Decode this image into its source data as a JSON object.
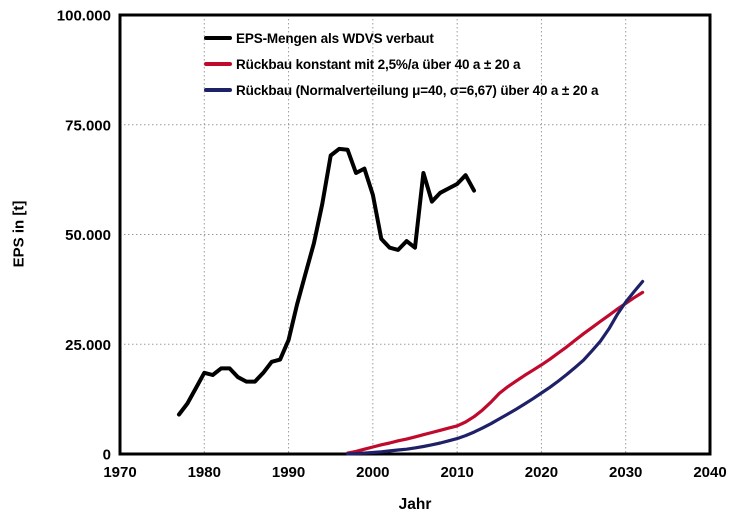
{
  "figure": {
    "background": "#ffffff",
    "axis_color": "#000000",
    "grid_color": "#9b9b9b"
  },
  "chart_data": {
    "type": "line",
    "title": "",
    "xlabel": "Jahr",
    "ylabel": "EPS in [t]",
    "xlim": [
      1970,
      2040
    ],
    "ylim": [
      0,
      100000
    ],
    "x_ticks": [
      1970,
      1980,
      1990,
      2000,
      2010,
      2020,
      2030,
      2040
    ],
    "y_ticks": [
      0,
      25000,
      50000,
      75000,
      100000
    ],
    "y_tick_labels": [
      "0",
      "25.000",
      "50.000",
      "75.000",
      "100.000"
    ],
    "grid": {
      "show": true,
      "style": "dotted",
      "color": "#9b9b9b"
    },
    "legend_position": "top-center-inside",
    "series": [
      {
        "name": "EPS-Mengen als WDVS verbaut",
        "color": "#000000",
        "width": 4,
        "x": [
          1977,
          1978,
          1979,
          1980,
          1981,
          1982,
          1983,
          1984,
          1985,
          1986,
          1987,
          1988,
          1989,
          1990,
          1991,
          1992,
          1993,
          1994,
          1995,
          1996,
          1997,
          1998,
          1999,
          2000,
          2001,
          2002,
          2003,
          2004,
          2005,
          2006,
          2007,
          2008,
          2009,
          2010,
          2011,
          2012
        ],
        "y": [
          9000,
          11500,
          15000,
          18500,
          18000,
          19500,
          19500,
          17500,
          16500,
          16500,
          18500,
          21000,
          21500,
          26000,
          34000,
          41000,
          48000,
          57000,
          68000,
          69500,
          69300,
          64000,
          65000,
          59000,
          49000,
          47000,
          46500,
          48500,
          47000,
          64000,
          57500,
          59500,
          60500,
          61500,
          63500,
          60000
        ]
      },
      {
        "name": "Rückbau konstant mit 2,5%/a über 40 a ± 20 a",
        "color": "#c00a2d",
        "width": 3.2,
        "x": [
          1997,
          1998,
          1999,
          2000,
          2001,
          2002,
          2003,
          2004,
          2005,
          2006,
          2007,
          2008,
          2009,
          2010,
          2011,
          2012,
          2013,
          2014,
          2015,
          2016,
          2017,
          2018,
          2019,
          2020,
          2021,
          2022,
          2023,
          2024,
          2025,
          2026,
          2027,
          2028,
          2029,
          2030,
          2031,
          2032
        ],
        "y": [
          200,
          600,
          1100,
          1600,
          2100,
          2500,
          3000,
          3400,
          3900,
          4400,
          4900,
          5400,
          5900,
          6400,
          7300,
          8500,
          10000,
          11800,
          13800,
          15300,
          16600,
          17900,
          19100,
          20300,
          21600,
          23000,
          24400,
          25900,
          27400,
          28800,
          30200,
          31600,
          33000,
          34300,
          35600,
          36800
        ]
      },
      {
        "name": "Rückbau (Normalverteilung μ=40, σ=6,67) über 40 a ± 20 a",
        "color": "#1f2168",
        "width": 3.2,
        "x": [
          1997,
          1998,
          1999,
          2000,
          2001,
          2002,
          2003,
          2004,
          2005,
          2006,
          2007,
          2008,
          2009,
          2010,
          2011,
          2012,
          2013,
          2014,
          2015,
          2016,
          2017,
          2018,
          2019,
          2020,
          2021,
          2022,
          2023,
          2024,
          2025,
          2026,
          2027,
          2028,
          2029,
          2030,
          2031,
          2032
        ],
        "y": [
          50,
          100,
          200,
          350,
          500,
          700,
          900,
          1100,
          1400,
          1700,
          2100,
          2500,
          3000,
          3500,
          4200,
          5000,
          5900,
          6900,
          8000,
          9100,
          10200,
          11400,
          12600,
          13900,
          15200,
          16600,
          18100,
          19700,
          21400,
          23500,
          25700,
          28500,
          31800,
          34600,
          37000,
          39300
        ]
      }
    ]
  }
}
